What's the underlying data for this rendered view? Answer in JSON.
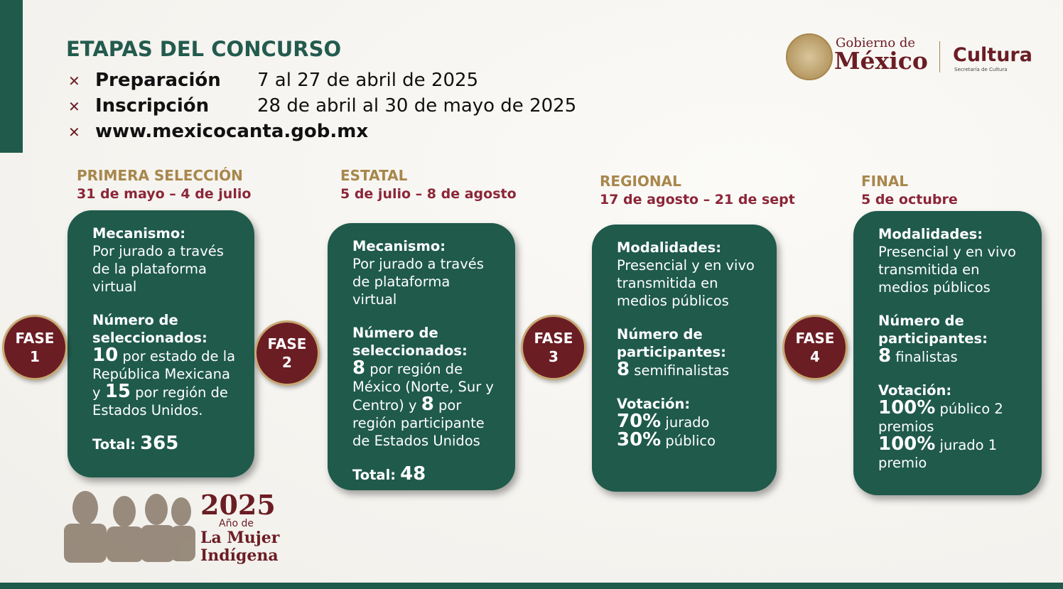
{
  "header": {
    "title": "ETAPAS DEL CONCURSO",
    "items": [
      {
        "label": "Preparación",
        "value": "7 al 27 de abril de 2025"
      },
      {
        "label": "Inscripción",
        "value": "28 de abril al 30 de mayo de 2025"
      },
      {
        "label": "www.mexicocanta.gob.mx"
      }
    ]
  },
  "logo": {
    "line1": "Gobierno de",
    "line2": "México",
    "brand": "Cultura",
    "sub": "Secretaría de Cultura"
  },
  "phases": [
    {
      "stage": "PRIMERA SELECCIÓN",
      "dates": "31 de mayo – 4 de julio",
      "badge": "FASE",
      "number": 1,
      "blocks": [
        {
          "heading": "Mecanismo:",
          "lines": [
            [
              {
                "text": "Por jurado a través de la plataforma virtual"
              }
            ]
          ]
        },
        {
          "heading": "Número de seleccionados:",
          "lines": [
            [
              {
                "num": 10
              },
              {
                "text": " por estado de la República Mexicana y "
              },
              {
                "num": 15
              },
              {
                "text": " por región de Estados Unidos."
              }
            ]
          ]
        }
      ],
      "total": {
        "label": "Total:",
        "value": 365
      }
    },
    {
      "stage": "ESTATAL",
      "dates": "5 de julio – 8 de agosto",
      "badge": "FASE",
      "number": 2,
      "blocks": [
        {
          "heading": "Mecanismo:",
          "lines": [
            [
              {
                "text": "Por jurado a través de plataforma virtual"
              }
            ]
          ]
        },
        {
          "heading": "Número de seleccionados:",
          "lines": [
            [
              {
                "num": 8
              },
              {
                "text": " por región de México (Norte, Sur y Centro) y "
              },
              {
                "num": 8
              },
              {
                "text": " por región participante de Estados Unidos"
              }
            ]
          ]
        }
      ],
      "total": {
        "label": "Total:",
        "value": 48
      }
    },
    {
      "stage": "REGIONAL",
      "dates": "17 de agosto – 21 de sept",
      "badge": "FASE",
      "number": 3,
      "blocks": [
        {
          "heading": "Modalidades:",
          "lines": [
            [
              {
                "text": "Presencial y en vivo transmitida en medios públicos"
              }
            ]
          ]
        },
        {
          "heading": "Número de participantes:",
          "lines": [
            [
              {
                "num": 8
              },
              {
                "text": " semifinalistas"
              }
            ]
          ]
        },
        {
          "heading": "Votación:",
          "lines": [
            [
              {
                "num": "70%"
              },
              {
                "text": " jurado"
              }
            ],
            [
              {
                "num": "30%"
              },
              {
                "text": " público"
              }
            ]
          ]
        }
      ]
    },
    {
      "stage": "FINAL",
      "dates": "5 de octubre",
      "badge": "FASE",
      "number": 4,
      "blocks": [
        {
          "heading": "Modalidades:",
          "lines": [
            [
              {
                "text": "Presencial y en vivo transmitida en medios públicos"
              }
            ]
          ]
        },
        {
          "heading": "Número de participantes:",
          "lines": [
            [
              {
                "num": 8
              },
              {
                "text": " finalistas"
              }
            ]
          ]
        },
        {
          "heading": "Votación:",
          "lines": [
            [
              {
                "num": "100%"
              },
              {
                "text": " público 2 premios"
              }
            ],
            [
              {
                "num": "100%"
              },
              {
                "text": " jurado 1 premio"
              }
            ]
          ]
        }
      ]
    }
  ],
  "year_badge": {
    "year": "2025",
    "line1": "Año de",
    "line2": "La Mujer",
    "line3": "Indígena"
  }
}
